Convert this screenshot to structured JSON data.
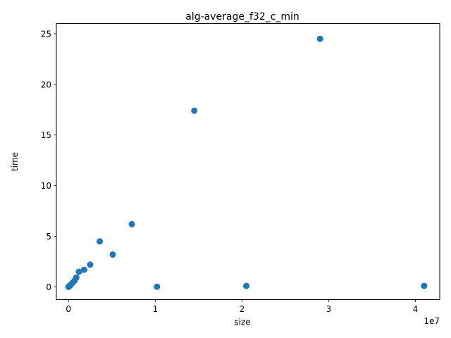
{
  "chart_data": {
    "type": "scatter",
    "title": "alg-average_f32_c_min",
    "xlabel": "size",
    "ylabel": "time",
    "x_offset_label": "1e7",
    "x_scale": 10000000,
    "xlim": [
      -1400000,
      42800000
    ],
    "ylim": [
      -1.25,
      26.0
    ],
    "x_ticks": [
      {
        "value": 0,
        "label": "0"
      },
      {
        "value": 10000000,
        "label": "1"
      },
      {
        "value": 20000000,
        "label": "2"
      },
      {
        "value": 30000000,
        "label": "3"
      },
      {
        "value": 40000000,
        "label": "4"
      }
    ],
    "y_ticks": [
      {
        "value": 0,
        "label": "0"
      },
      {
        "value": 5,
        "label": "5"
      },
      {
        "value": 10,
        "label": "10"
      },
      {
        "value": 15,
        "label": "15"
      },
      {
        "value": 20,
        "label": "20"
      },
      {
        "value": 25,
        "label": "25"
      }
    ],
    "grid": false,
    "marker_color": "#1f77b4",
    "series": [
      {
        "points": [
          [
            0,
            0.01
          ],
          [
            20000,
            0.02
          ],
          [
            50000,
            0.04
          ],
          [
            100000,
            0.08
          ],
          [
            200000,
            0.17
          ],
          [
            300000,
            0.27
          ],
          [
            500000,
            0.45
          ],
          [
            700000,
            0.62
          ],
          [
            900000,
            0.93
          ],
          [
            1200000,
            1.5
          ],
          [
            1800000,
            1.7
          ],
          [
            2500000,
            2.2
          ],
          [
            3600000,
            4.5
          ],
          [
            5100000,
            3.2
          ],
          [
            7300000,
            6.2
          ],
          [
            10200000,
            0.02
          ],
          [
            14500000,
            17.4
          ],
          [
            20500000,
            0.1
          ],
          [
            29000000,
            24.5
          ],
          [
            41000000,
            0.1
          ]
        ]
      }
    ]
  }
}
